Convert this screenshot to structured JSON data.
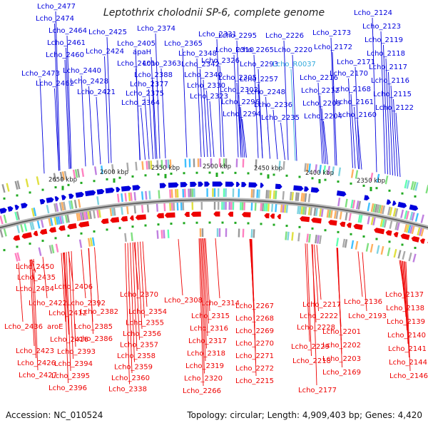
{
  "title": "Leptothrix cholodnii SP-6, complete genome",
  "accession": "Accession: NC_010524",
  "summary": "Topology: circular; Length: 4,909,403 bp; Genes: 4,420",
  "colors": {
    "forward": "#0000dd",
    "reverse": "#ee0000",
    "highlight": "#33aadd",
    "backbone": "#8a8a8a",
    "tick": "#22aa22"
  },
  "ruler": [
    "2650 kbp",
    "2600 kbp",
    "2550 kbp",
    "2500 kbp",
    "2450 kbp",
    "2400 kbp",
    "2350 kbp"
  ],
  "top_labels": [
    "Lcho_2477",
    "Lcho_2474",
    "Lcho_2464",
    "Lcho_2461",
    "Lcho_2460",
    "Lcho_2473",
    "Lcho_2462",
    "Lcho_2440",
    "Lcho_2428",
    "Lcho_2421",
    "Lcho_2425",
    "Lcho_2424",
    "Lcho_2405",
    "Lcho_2401",
    "Lcho_2388",
    "Lcho_2377",
    "Lcho_2375",
    "Lcho_2364",
    "Lcho_2374",
    "Lcho_2365",
    "apaH",
    "Lcho_2363",
    "Lcho_2348",
    "Lcho_2342",
    "Lcho_2340",
    "Lcho_2330",
    "Lcho_2323",
    "Lcho_2331",
    "Lcho_2310",
    "Lcho_2326",
    "Lcho_2305",
    "Lcho_2302",
    "Lcho_2296",
    "Lcho_2294",
    "Lcho_2295",
    "Lcho_2265",
    "Lcho_2293",
    "Lcho_2257",
    "Lcho_2248",
    "Lcho_2236",
    "Lcho_2235",
    "Lcho_2226",
    "Lcho_2220",
    "Lcho_R0037",
    "Lcho_2216",
    "Lcho_2212",
    "Lcho_2205",
    "Lcho_2204",
    "Lcho_2173",
    "Lcho_2172",
    "Lcho_2171",
    "Lcho_2170",
    "Lcho_2168",
    "Lcho_2161",
    "Lcho_2160",
    "Lcho_2124",
    "Lcho_2123",
    "Lcho_2119",
    "Lcho_2118",
    "Lcho_2117",
    "Lcho_2116",
    "Lcho_2115",
    "Lcho_2122"
  ],
  "bottom_labels": [
    "Lcho_2450",
    "Lcho_2435",
    "Lcho_2434",
    "Lcho_2406",
    "Lcho_2422",
    "Lcho_2412",
    "Lcho_2436",
    "aroE",
    "Lcho_2416",
    "Lcho_2423",
    "Lcho_2426",
    "Lcho_2427",
    "Lcho_2392",
    "Lcho_2382",
    "Lcho_2385",
    "Lcho_2386",
    "Lcho_2393",
    "Lcho_2394",
    "Lcho_2395",
    "Lcho_2396",
    "Lcho_2370",
    "Lcho_2354",
    "Lcho_2355",
    "Lcho_2356",
    "Lcho_2357",
    "Lcho_2358",
    "Lcho_2359",
    "Lcho_2360",
    "Lcho_2338",
    "Lcho_2308",
    "Lcho_2314",
    "Lcho_2315",
    "Lcho_2316",
    "Lcho_2317",
    "Lcho_2318",
    "Lcho_2319",
    "Lcho_2320",
    "Lcho_2266",
    "Lcho_2267",
    "Lcho_2268",
    "Lcho_2269",
    "Lcho_2270",
    "Lcho_2271",
    "Lcho_2272",
    "Lcho_2215",
    "Lcho_2217",
    "Lcho_2222",
    "Lcho_2228",
    "Lcho_2229",
    "Lcho_2218",
    "Lcho_2177",
    "Lcho_2193",
    "Lcho_2201",
    "Lcho_2202",
    "Lcho_2203",
    "Lcho_2169",
    "Lcho_2136",
    "Lcho_2137",
    "Lcho_2138",
    "Lcho_2139",
    "Lcho_2140",
    "Lcho_2141",
    "Lcho_2144",
    "Lcho_2146"
  ]
}
